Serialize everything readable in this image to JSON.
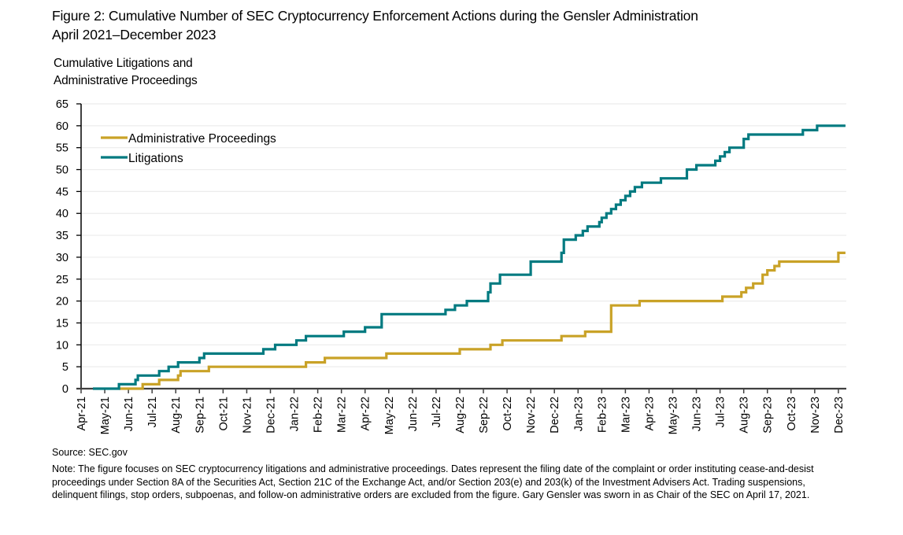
{
  "figure": {
    "title_line1": "Figure 2: Cumulative Number of SEC Cryptocurrency Enforcement Actions during the Gensler Administration",
    "title_line2": "April 2021–December 2023",
    "ylabel_line1": "Cumulative Litigations and",
    "ylabel_line2": "Administrative Proceedings",
    "source": "Source: SEC.gov",
    "note": "Note: The figure focuses on SEC cryptocurrency litigations and administrative proceedings. Dates represent the filing date of the complaint or order instituting cease-and-desist proceedings under Section 8A of the Securities Act, Section 21C of the Exchange Act, and/or Section 203(e) and 203(k) of the Investment Advisers Act. Trading suspensions, delinquent filings, stop orders, subpoenas, and follow-on administrative orders are excluded from the figure. Gary Gensler was sworn in as Chair of the SEC on April 17, 2021."
  },
  "chart_data": {
    "type": "line",
    "step": true,
    "title": "Cumulative Number of SEC Cryptocurrency Enforcement Actions during the Gensler Administration, April 2021–December 2023",
    "xlabel": "",
    "ylabel": "Cumulative Litigations and Administrative Proceedings",
    "ylim": [
      0,
      65
    ],
    "yticks": [
      0,
      5,
      10,
      15,
      20,
      25,
      30,
      35,
      40,
      45,
      50,
      55,
      60,
      65
    ],
    "x_unit": "months since Apr-21",
    "xlim": [
      0,
      32.3
    ],
    "categories": [
      "Apr-21",
      "May-21",
      "Jun-21",
      "Jul-21",
      "Aug-21",
      "Sep-21",
      "Oct-21",
      "Nov-21",
      "Dec-21",
      "Jan-22",
      "Feb-22",
      "Mar-22",
      "Apr-22",
      "May-22",
      "Jun-22",
      "Jul-22",
      "Aug-22",
      "Sep-22",
      "Oct-22",
      "Nov-22",
      "Dec-22",
      "Jan-23",
      "Feb-23",
      "Mar-23",
      "Apr-23",
      "May-23",
      "Jun-23",
      "Jul-23",
      "Aug-23",
      "Sep-23",
      "Oct-23",
      "Nov-23",
      "Dec-23"
    ],
    "grid": true,
    "legend_position": "top-left",
    "series": [
      {
        "name": "Administrative Proceedings",
        "color": "#C9A227",
        "points": [
          [
            1.6,
            0
          ],
          [
            2.0,
            0
          ],
          [
            2.6,
            1
          ],
          [
            3.3,
            2
          ],
          [
            4.1,
            3
          ],
          [
            4.2,
            4
          ],
          [
            5.4,
            5
          ],
          [
            9.5,
            6
          ],
          [
            10.3,
            7
          ],
          [
            12.9,
            8
          ],
          [
            16.0,
            9
          ],
          [
            17.3,
            10
          ],
          [
            17.8,
            11
          ],
          [
            20.3,
            12
          ],
          [
            21.3,
            13
          ],
          [
            22.4,
            19
          ],
          [
            23.6,
            20
          ],
          [
            27.1,
            21
          ],
          [
            27.9,
            22
          ],
          [
            28.1,
            23
          ],
          [
            28.4,
            24
          ],
          [
            28.8,
            26
          ],
          [
            29.0,
            27
          ],
          [
            29.3,
            28
          ],
          [
            29.5,
            29
          ],
          [
            32.0,
            31
          ],
          [
            32.3,
            31
          ]
        ]
      },
      {
        "name": "Litigations",
        "color": "#007A80",
        "points": [
          [
            0.5,
            0
          ],
          [
            1.6,
            1
          ],
          [
            2.3,
            2
          ],
          [
            2.4,
            3
          ],
          [
            3.3,
            4
          ],
          [
            3.7,
            5
          ],
          [
            4.1,
            6
          ],
          [
            5.0,
            7
          ],
          [
            5.2,
            8
          ],
          [
            7.7,
            9
          ],
          [
            8.2,
            10
          ],
          [
            9.1,
            11
          ],
          [
            9.5,
            12
          ],
          [
            11.1,
            13
          ],
          [
            12.0,
            14
          ],
          [
            12.7,
            17
          ],
          [
            15.4,
            18
          ],
          [
            15.8,
            19
          ],
          [
            16.3,
            20
          ],
          [
            17.2,
            22
          ],
          [
            17.3,
            24
          ],
          [
            17.7,
            26
          ],
          [
            19.0,
            29
          ],
          [
            20.3,
            31
          ],
          [
            20.4,
            34
          ],
          [
            20.9,
            35
          ],
          [
            21.2,
            36
          ],
          [
            21.4,
            37
          ],
          [
            21.9,
            38
          ],
          [
            22.0,
            39
          ],
          [
            22.2,
            40
          ],
          [
            22.4,
            41
          ],
          [
            22.6,
            42
          ],
          [
            22.8,
            43
          ],
          [
            23.0,
            44
          ],
          [
            23.2,
            45
          ],
          [
            23.4,
            46
          ],
          [
            23.7,
            47
          ],
          [
            24.5,
            48
          ],
          [
            25.6,
            50
          ],
          [
            26.0,
            51
          ],
          [
            26.8,
            52
          ],
          [
            27.0,
            53
          ],
          [
            27.2,
            54
          ],
          [
            27.4,
            55
          ],
          [
            28.0,
            57
          ],
          [
            28.2,
            58
          ],
          [
            30.5,
            59
          ],
          [
            31.1,
            60
          ],
          [
            32.3,
            60
          ]
        ]
      }
    ]
  }
}
